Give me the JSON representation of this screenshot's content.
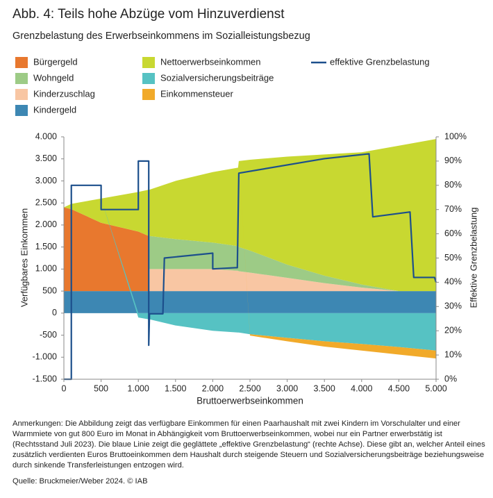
{
  "chart_data": {
    "type": "stacked_area_line",
    "title": "Abb. 4: Teils hohe Abzüge vom Hinzuverdienst",
    "subtitle": "Grenzbelastung des Erwerbseinkommens im Sozialleistungsbezug",
    "xlabel": "Bruttoerwerbseinkommen",
    "ylabel": "Verfügbares Einkommen",
    "y2label": "Effektive Grenzbelastung",
    "x": [
      0,
      100,
      500,
      1000,
      1140,
      1150,
      1500,
      2000,
      2340,
      2350,
      2500,
      3000,
      3500,
      4000,
      4500,
      5000
    ],
    "series": [
      {
        "name": "Kindergeld",
        "color": "#3d87b3",
        "values": [
          500,
          500,
          500,
          500,
          500,
          500,
          500,
          500,
          500,
          500,
          500,
          500,
          500,
          500,
          500,
          500
        ]
      },
      {
        "name": "Kinderzuschlag",
        "color": "#f8c6a3",
        "values": [
          0,
          0,
          0,
          0,
          0,
          500,
          500,
          500,
          460,
          450,
          420,
          300,
          180,
          80,
          0,
          0
        ]
      },
      {
        "name": "Wohngeld",
        "color": "#9dcb86",
        "values": [
          0,
          0,
          0,
          0,
          0,
          750,
          680,
          600,
          560,
          550,
          500,
          300,
          170,
          70,
          0,
          0
        ]
      },
      {
        "name": "Bürgergeld",
        "color": "#e8782e",
        "values": [
          1900,
          1860,
          1550,
          1350,
          1250,
          0,
          0,
          0,
          0,
          0,
          0,
          0,
          0,
          0,
          0,
          0
        ]
      },
      {
        "name": "Nettoerwerbseinkommen",
        "color": "#c8d831",
        "values": [
          0,
          120,
          550,
          900,
          1050,
          1050,
          1320,
          1600,
          1780,
          1950,
          2060,
          2450,
          2750,
          3000,
          3300,
          3450
        ]
      },
      {
        "name": "Sozialversicherungsbeiträge",
        "color": "#56c2c3",
        "values": [
          0,
          0,
          0,
          -100,
          -140,
          -140,
          -280,
          -400,
          -440,
          -440,
          -480,
          -560,
          -640,
          -700,
          -770,
          -850
        ]
      },
      {
        "name": "Einkommensteuer",
        "color": "#f1aa2a",
        "values": [
          0,
          0,
          0,
          0,
          0,
          0,
          0,
          0,
          0,
          0,
          -30,
          -80,
          -120,
          -150,
          -170,
          -180
        ]
      }
    ],
    "line": {
      "name": "effektive Grenzbelastung",
      "color": "#1c4f8c",
      "axis": "y2",
      "x": [
        0,
        100,
        100,
        500,
        500,
        1000,
        1000,
        1140,
        1140,
        1150,
        1330,
        1350,
        2000,
        2000,
        2300,
        2330,
        2350,
        3500,
        4100,
        4150,
        4650,
        4700,
        4980,
        5000
      ],
      "values": [
        0,
        0,
        80,
        80,
        70,
        70,
        90,
        90,
        14,
        27,
        27,
        50,
        52,
        45.5,
        46,
        46,
        85,
        91,
        93,
        67,
        69,
        42,
        42,
        40
      ]
    },
    "legend_order": [
      3,
      4,
      2,
      5,
      1,
      6,
      0
    ],
    "xlim": [
      0,
      5000
    ],
    "xticks": [
      0,
      500,
      {
        "value": 1000,
        "label": "1.000"
      },
      {
        "value": 1500,
        "label": "1.500"
      },
      {
        "value": 2000,
        "label": "2.000"
      },
      {
        "value": 2500,
        "label": "2.500"
      },
      {
        "value": 3000,
        "label": "3.000"
      },
      {
        "value": 3500,
        "label": "3.500"
      },
      {
        "value": 4000,
        "label": "4.000"
      },
      {
        "value": 4500,
        "label": "4.500"
      },
      {
        "value": 5000,
        "label": "5.000"
      }
    ],
    "ylim": [
      -1500,
      4000
    ],
    "yticks": [
      {
        "value": -1500,
        "label": "-1.500"
      },
      {
        "value": -1000,
        "label": "-1.000"
      },
      -500,
      0,
      500,
      {
        "value": 1000,
        "label": "1.000"
      },
      {
        "value": 1500,
        "label": "1.500"
      },
      {
        "value": 2000,
        "label": "2.000"
      },
      {
        "value": 2500,
        "label": "2.500"
      },
      {
        "value": 3000,
        "label": "3.000"
      },
      {
        "value": 3500,
        "label": "3.500"
      },
      {
        "value": 4000,
        "label": "4.000"
      }
    ],
    "y2lim": [
      0,
      100
    ],
    "y2ticks": [
      {
        "value": 0,
        "label": "0%"
      },
      {
        "value": 10,
        "label": "10%"
      },
      {
        "value": 20,
        "label": "20%"
      },
      {
        "value": 30,
        "label": "30%"
      },
      {
        "value": 40,
        "label": "40%"
      },
      {
        "value": 50,
        "label": "50%"
      },
      {
        "value": 60,
        "label": "60%"
      },
      {
        "value": 70,
        "label": "70%"
      },
      {
        "value": 80,
        "label": "80%"
      },
      {
        "value": 90,
        "label": "90%"
      },
      {
        "value": 100,
        "label": "100%"
      }
    ],
    "notes": [
      "Anmerkungen: Die Abbildung zeigt das verfügbare Einkommen für einen Paarhaushalt mit zwei Kindern im Vorschulalter und einer",
      "Warmmiete von gut 800 Euro im Monat in Abhängigkeit vom Bruttoerwerbseinkommen, wobei nur ein Partner erwerbstätig ist",
      "(Rechtsstand Juli 2023). Die blaue Linie zeigt die geglättete „effektive Grenzbelastung“ (rechte Achse). Diese gibt an, welcher Anteil eines",
      "zusätzlich verdienten Euros Bruttoeinkommen dem Haushalt durch steigende Steuern und Sozialversicherungsbeiträge beziehungsweise",
      "durch sinkende Transferleistungen entzogen wird."
    ],
    "source": "Quelle: Bruckmeier/Weber 2024.  © IAB"
  }
}
